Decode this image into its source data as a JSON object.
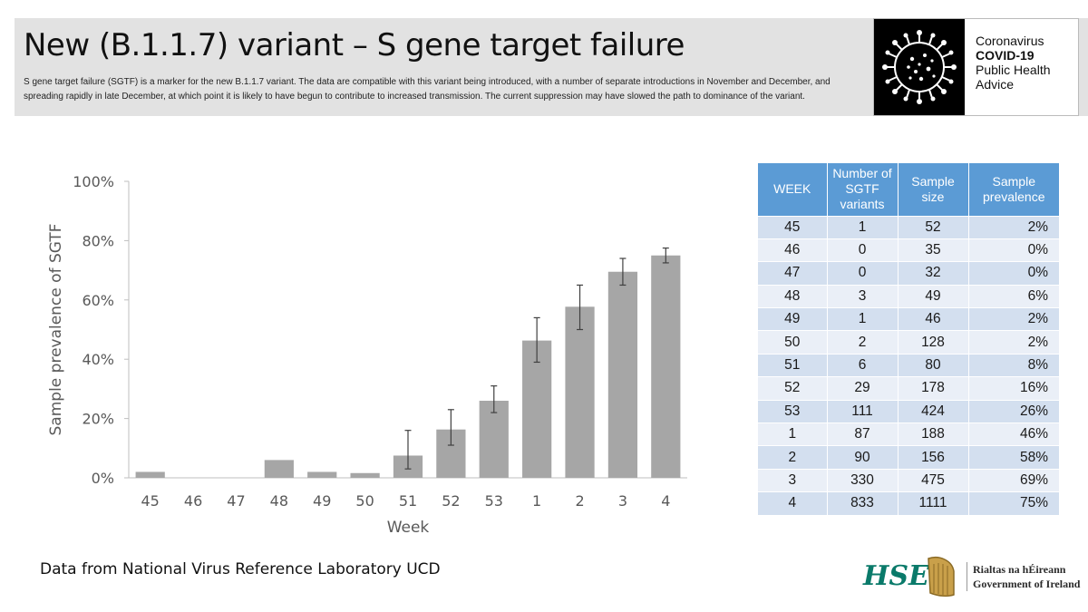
{
  "header": {
    "title": "New (B.1.1.7) variant – S gene target failure",
    "subtitle": "S gene target failure (SGTF) is a marker for the new B.1.1.7 variant.  The data are compatible with this variant being introduced, with a number of separate introductions in November and December, and spreading rapidly in late December, at which point it is likely to have begun to contribute to increased transmission. The current suppression may have slowed the path to dominance of the variant."
  },
  "badge": {
    "line1": "Coronavirus",
    "line2": "COVID-19",
    "line3": "Public Health",
    "line4": "Advice",
    "icon": "virus-icon"
  },
  "chart_data": {
    "type": "bar",
    "categories": [
      "45",
      "46",
      "47",
      "48",
      "49",
      "50",
      "51",
      "52",
      "53",
      "1",
      "2",
      "3",
      "4"
    ],
    "values": [
      2,
      0,
      0,
      6,
      2,
      1.6,
      7.5,
      16.3,
      26,
      46.3,
      57.7,
      69.5,
      75
    ],
    "error_low": [
      null,
      null,
      null,
      null,
      null,
      null,
      3,
      11,
      22,
      39,
      50,
      65,
      72.5
    ],
    "error_high": [
      null,
      null,
      null,
      null,
      null,
      null,
      16,
      23,
      31,
      54,
      65,
      74,
      77.5
    ],
    "ylabel": "Sample prevalence of SGTF",
    "xlabel": "Week",
    "ylim": [
      0,
      100
    ],
    "yticks": [
      "0%",
      "20%",
      "40%",
      "60%",
      "80%",
      "100%"
    ],
    "grid": false,
    "bar_color": "#a6a6a6"
  },
  "table": {
    "headers": [
      "WEEK",
      "Number of SGTF variants",
      "Sample size",
      "Sample prevalence"
    ],
    "rows": [
      [
        "45",
        "1",
        "52",
        "2%"
      ],
      [
        "46",
        "0",
        "35",
        "0%"
      ],
      [
        "47",
        "0",
        "32",
        "0%"
      ],
      [
        "48",
        "3",
        "49",
        "6%"
      ],
      [
        "49",
        "1",
        "46",
        "2%"
      ],
      [
        "50",
        "2",
        "128",
        "2%"
      ],
      [
        "51",
        "6",
        "80",
        "8%"
      ],
      [
        "52",
        "29",
        "178",
        "16%"
      ],
      [
        "53",
        "111",
        "424",
        "26%"
      ],
      [
        "1",
        "87",
        "188",
        "46%"
      ],
      [
        "2",
        "90",
        "156",
        "58%"
      ],
      [
        "3",
        "330",
        "475",
        "69%"
      ],
      [
        "4",
        "833",
        "1111",
        "75%"
      ]
    ]
  },
  "footer": {
    "source_note": "Data from National Virus Reference Laboratory UCD",
    "hse_logo": "HSE",
    "gov_line1": "Rialtas na hÉireann",
    "gov_line2": "Government of Ireland"
  },
  "colors": {
    "header_bg": "#e2e2e2",
    "table_header": "#5b9bd5",
    "hse_teal": "#0a7a6a"
  }
}
